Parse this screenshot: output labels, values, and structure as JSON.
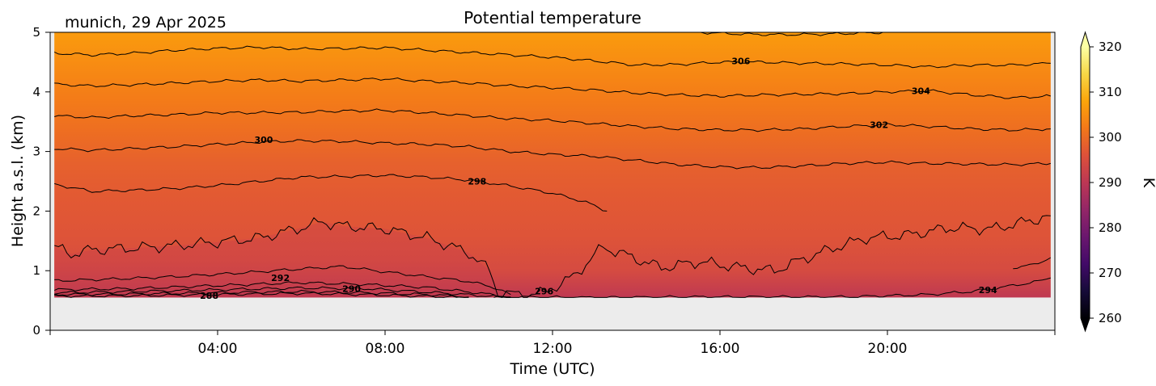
{
  "chart_data": {
    "type": "heatmap",
    "title": "Potential temperature",
    "subtitle": "munich, 29 Apr 2025",
    "xlabel": "Time (UTC)",
    "ylabel": "Height a.s.l. (km)",
    "xlim": [
      0,
      24
    ],
    "ylim": [
      0,
      5
    ],
    "x_ticks": [
      {
        "value": 4,
        "label": "04:00"
      },
      {
        "value": 8,
        "label": "08:00"
      },
      {
        "value": 12,
        "label": "12:00"
      },
      {
        "value": 16,
        "label": "16:00"
      },
      {
        "value": 20,
        "label": "20:00"
      }
    ],
    "y_ticks": [
      {
        "value": 0,
        "label": "0"
      },
      {
        "value": 1,
        "label": "1"
      },
      {
        "value": 2,
        "label": "2"
      },
      {
        "value": 3,
        "label": "3"
      },
      {
        "value": 4,
        "label": "4"
      },
      {
        "value": 5,
        "label": "5"
      }
    ],
    "data_extent": {
      "x": [
        0.1,
        23.9
      ],
      "y": [
        0.55,
        5
      ]
    },
    "no_data_color": "#ececec",
    "colorbar": {
      "label": "K",
      "range": [
        260,
        320
      ],
      "ticks": [
        {
          "value": 260,
          "label": "260"
        },
        {
          "value": 270,
          "label": "270"
        },
        {
          "value": 280,
          "label": "280"
        },
        {
          "value": 290,
          "label": "290"
        },
        {
          "value": 300,
          "label": "300"
        },
        {
          "value": 310,
          "label": "310"
        },
        {
          "value": 320,
          "label": "320"
        }
      ],
      "colormap": "inferno",
      "stops": [
        {
          "value": 260,
          "color": "#000004"
        },
        {
          "value": 266,
          "color": "#160b39"
        },
        {
          "value": 272,
          "color": "#420a68"
        },
        {
          "value": 278,
          "color": "#6a176e"
        },
        {
          "value": 284,
          "color": "#932667"
        },
        {
          "value": 290,
          "color": "#bc3754"
        },
        {
          "value": 296,
          "color": "#dd513a"
        },
        {
          "value": 302,
          "color": "#f37819"
        },
        {
          "value": 308,
          "color": "#fca50a"
        },
        {
          "value": 314,
          "color": "#f6d746"
        },
        {
          "value": 320,
          "color": "#fcffa4"
        }
      ]
    },
    "contours": [
      {
        "level": 288,
        "label": "288",
        "label_x": 3.8,
        "label_y": 0.58,
        "points": [
          [
            0.1,
            0.57
          ],
          [
            2,
            0.58
          ],
          [
            4,
            0.6
          ],
          [
            6,
            0.62
          ],
          [
            7.5,
            0.6
          ],
          [
            9,
            0.57
          ],
          [
            10,
            0.55
          ]
        ]
      },
      {
        "level": 289,
        "label": "",
        "label_x": null,
        "label_y": null,
        "points": [
          [
            0.1,
            0.6
          ],
          [
            2,
            0.61
          ],
          [
            4,
            0.63
          ],
          [
            6,
            0.65
          ],
          [
            7.5,
            0.63
          ],
          [
            9,
            0.6
          ],
          [
            10,
            0.56
          ]
        ]
      },
      {
        "level": 290,
        "label": "290",
        "label_x": 7.2,
        "label_y": 0.7,
        "points": [
          [
            0.1,
            0.63
          ],
          [
            2,
            0.65
          ],
          [
            4,
            0.68
          ],
          [
            6,
            0.71
          ],
          [
            7.5,
            0.7
          ],
          [
            8.5,
            0.66
          ],
          [
            9.5,
            0.62
          ],
          [
            10.5,
            0.57
          ],
          [
            11,
            0.55
          ]
        ]
      },
      {
        "level": 291,
        "label": "",
        "label_x": null,
        "label_y": null,
        "points": [
          [
            0.1,
            0.68
          ],
          [
            2,
            0.7
          ],
          [
            4,
            0.75
          ],
          [
            6,
            0.8
          ],
          [
            7.5,
            0.77
          ],
          [
            9,
            0.72
          ],
          [
            10.3,
            0.62
          ],
          [
            11,
            0.56
          ]
        ]
      },
      {
        "level": 292,
        "label": "292",
        "label_x": 5.5,
        "label_y": 0.88,
        "points": [
          [
            0.1,
            0.83
          ],
          [
            1.5,
            0.86
          ],
          [
            3,
            0.9
          ],
          [
            4.5,
            0.96
          ],
          [
            6,
            1.03
          ],
          [
            7,
            1.07
          ],
          [
            8,
            0.98
          ],
          [
            9,
            0.9
          ],
          [
            10,
            0.82
          ],
          [
            10.6,
            0.72
          ],
          [
            11,
            0.6
          ]
        ]
      },
      {
        "level": 294,
        "label": "294",
        "label_x": 22.4,
        "label_y": 0.68,
        "points": [
          [
            10.6,
            0.55
          ],
          [
            11.5,
            0.56
          ],
          [
            12.5,
            0.55
          ],
          [
            13.5,
            0.55
          ],
          [
            15,
            0.56
          ],
          [
            17,
            0.56
          ],
          [
            19,
            0.56
          ],
          [
            21,
            0.6
          ],
          [
            22,
            0.65
          ],
          [
            23,
            0.75
          ],
          [
            23.6,
            0.82
          ],
          [
            23.9,
            0.88
          ]
        ]
      },
      {
        "level": 294,
        "label": "",
        "label_x": null,
        "label_y": null,
        "points": [
          [
            23,
            1.05
          ],
          [
            23.5,
            1.1
          ],
          [
            23.9,
            1.22
          ]
        ]
      },
      {
        "level": 296,
        "label": "296",
        "label_x": 11.8,
        "label_y": 0.66,
        "points": [
          [
            0.1,
            1.4
          ],
          [
            0.5,
            1.28
          ],
          [
            1,
            1.35
          ],
          [
            2,
            1.38
          ],
          [
            3,
            1.42
          ],
          [
            4,
            1.48
          ],
          [
            5,
            1.55
          ],
          [
            6,
            1.72
          ],
          [
            6.5,
            1.82
          ],
          [
            7,
            1.75
          ],
          [
            8,
            1.7
          ],
          [
            9,
            1.55
          ],
          [
            10,
            1.3
          ],
          [
            10.5,
            1.0
          ],
          [
            10.7,
            0.62
          ],
          [
            11.2,
            0.6
          ],
          [
            11.8,
            0.63
          ],
          [
            12.5,
            0.9
          ],
          [
            13.2,
            1.4
          ],
          [
            14,
            1.2
          ],
          [
            14.6,
            1.05
          ],
          [
            15.5,
            1.15
          ],
          [
            16.5,
            1.05
          ],
          [
            17.3,
            1.0
          ],
          [
            18,
            1.2
          ],
          [
            18.8,
            1.4
          ],
          [
            19.5,
            1.55
          ],
          [
            20.5,
            1.6
          ],
          [
            21.5,
            1.72
          ],
          [
            22.5,
            1.7
          ],
          [
            23.3,
            1.82
          ],
          [
            23.9,
            1.92
          ]
        ]
      },
      {
        "level": 298,
        "label": "298",
        "label_x": 10.2,
        "label_y": 2.5,
        "points": [
          [
            0.1,
            2.45
          ],
          [
            1,
            2.33
          ],
          [
            2,
            2.35
          ],
          [
            3,
            2.38
          ],
          [
            4,
            2.43
          ],
          [
            5,
            2.5
          ],
          [
            6,
            2.57
          ],
          [
            7,
            2.58
          ],
          [
            8,
            2.6
          ],
          [
            9,
            2.57
          ],
          [
            10,
            2.52
          ],
          [
            11,
            2.42
          ],
          [
            12,
            2.3
          ],
          [
            12.8,
            2.15
          ],
          [
            13.3,
            2.0
          ]
        ]
      },
      {
        "level": 300,
        "label": "300",
        "label_x": 5.1,
        "label_y": 3.2,
        "points": [
          [
            0.1,
            3.05
          ],
          [
            1,
            3.02
          ],
          [
            2,
            3.05
          ],
          [
            3,
            3.08
          ],
          [
            4,
            3.12
          ],
          [
            5,
            3.16
          ],
          [
            6,
            3.18
          ],
          [
            7,
            3.17
          ],
          [
            8,
            3.14
          ],
          [
            9,
            3.12
          ],
          [
            10,
            3.08
          ],
          [
            11,
            3.0
          ],
          [
            12,
            2.95
          ],
          [
            13,
            2.92
          ],
          [
            14,
            2.85
          ],
          [
            15,
            2.78
          ],
          [
            16,
            2.74
          ],
          [
            17,
            2.73
          ],
          [
            18,
            2.76
          ],
          [
            19,
            2.8
          ],
          [
            20,
            2.82
          ],
          [
            21,
            2.8
          ],
          [
            22,
            2.79
          ],
          [
            23,
            2.78
          ],
          [
            23.9,
            2.8
          ]
        ]
      },
      {
        "level": 302,
        "label": "302",
        "label_x": 19.8,
        "label_y": 3.45,
        "points": [
          [
            0.1,
            3.6
          ],
          [
            1,
            3.57
          ],
          [
            2,
            3.6
          ],
          [
            3,
            3.62
          ],
          [
            4,
            3.65
          ],
          [
            5,
            3.65
          ],
          [
            6,
            3.66
          ],
          [
            7,
            3.68
          ],
          [
            8,
            3.69
          ],
          [
            9,
            3.65
          ],
          [
            10,
            3.6
          ],
          [
            11,
            3.55
          ],
          [
            12,
            3.52
          ],
          [
            13,
            3.47
          ],
          [
            14,
            3.42
          ],
          [
            15,
            3.38
          ],
          [
            16,
            3.36
          ],
          [
            17,
            3.36
          ],
          [
            18,
            3.38
          ],
          [
            19,
            3.42
          ],
          [
            20,
            3.45
          ],
          [
            21,
            3.42
          ],
          [
            22,
            3.38
          ],
          [
            23,
            3.36
          ],
          [
            23.9,
            3.38
          ]
        ]
      },
      {
        "level": 304,
        "label": "304",
        "label_x": 20.8,
        "label_y": 4.02,
        "points": [
          [
            0.1,
            4.13
          ],
          [
            1,
            4.1
          ],
          [
            2,
            4.12
          ],
          [
            3,
            4.15
          ],
          [
            4,
            4.18
          ],
          [
            5,
            4.2
          ],
          [
            6,
            4.18
          ],
          [
            7,
            4.2
          ],
          [
            8,
            4.22
          ],
          [
            9,
            4.18
          ],
          [
            10,
            4.15
          ],
          [
            11,
            4.1
          ],
          [
            12,
            4.07
          ],
          [
            13,
            4.03
          ],
          [
            14,
            3.98
          ],
          [
            15,
            3.95
          ],
          [
            16,
            3.93
          ],
          [
            17,
            3.95
          ],
          [
            18,
            3.96
          ],
          [
            19,
            3.97
          ],
          [
            20,
            4.0
          ],
          [
            21,
            4.02
          ],
          [
            22,
            3.95
          ],
          [
            23,
            3.9
          ],
          [
            23.9,
            3.93
          ]
        ]
      },
      {
        "level": 306,
        "label": "306",
        "label_x": 16.5,
        "label_y": 4.52,
        "points": [
          [
            0.1,
            4.65
          ],
          [
            1,
            4.62
          ],
          [
            2,
            4.65
          ],
          [
            3,
            4.7
          ],
          [
            4,
            4.73
          ],
          [
            5,
            4.75
          ],
          [
            6,
            4.72
          ],
          [
            7,
            4.73
          ],
          [
            8,
            4.74
          ],
          [
            9,
            4.7
          ],
          [
            10,
            4.66
          ],
          [
            11,
            4.62
          ],
          [
            12,
            4.58
          ],
          [
            13,
            4.52
          ],
          [
            14,
            4.45
          ],
          [
            15,
            4.46
          ],
          [
            16,
            4.5
          ],
          [
            17,
            4.5
          ],
          [
            18,
            4.48
          ],
          [
            19,
            4.47
          ],
          [
            20,
            4.45
          ],
          [
            21,
            4.42
          ],
          [
            22,
            4.45
          ],
          [
            23,
            4.45
          ],
          [
            23.9,
            4.48
          ]
        ]
      },
      {
        "level": 308,
        "label": "",
        "label_x": null,
        "label_y": null,
        "points": [
          [
            15.5,
            5.0
          ],
          [
            16.5,
            4.97
          ],
          [
            17.5,
            4.96
          ],
          [
            18.5,
            4.97
          ],
          [
            19.5,
            4.99
          ],
          [
            20,
            5.0
          ]
        ]
      }
    ],
    "profile": [
      {
        "y": 0.55,
        "v": 290.5
      },
      {
        "y": 1.0,
        "v": 294.5
      },
      {
        "y": 1.6,
        "v": 296.4
      },
      {
        "y": 2.2,
        "v": 297.3
      },
      {
        "y": 2.8,
        "v": 298.4
      },
      {
        "y": 3.3,
        "v": 300.3
      },
      {
        "y": 3.9,
        "v": 302.5
      },
      {
        "y": 4.4,
        "v": 304.4
      },
      {
        "y": 5.0,
        "v": 306.6
      }
    ],
    "grid": false,
    "legend": "colorbar-right"
  }
}
